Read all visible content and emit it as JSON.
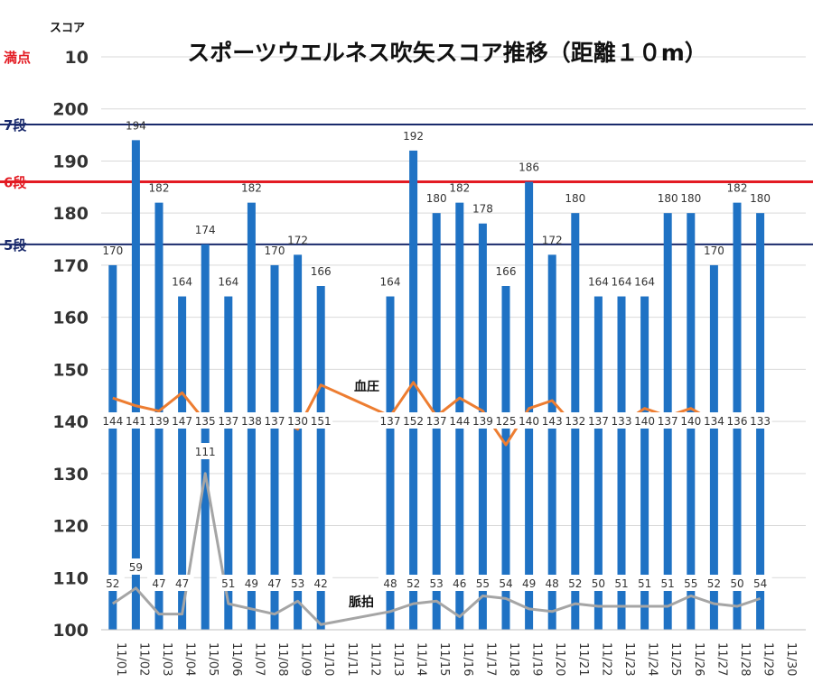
{
  "chart_data": {
    "type": "bar",
    "title": "スポーツウエルネス吹矢スコア推移（距離１０m）",
    "ylabel": "スコア",
    "ylim": [
      100,
      210
    ],
    "yticks": [
      "100",
      "110",
      "120",
      "130",
      "140",
      "150",
      "160",
      "170",
      "180",
      "190",
      "200",
      "10"
    ],
    "grid": true,
    "categories": [
      "11/01",
      "11/02",
      "11/03",
      "11/04",
      "11/05",
      "11/06",
      "11/07",
      "11/08",
      "11/09",
      "11/10",
      "11/11",
      "11/12",
      "11/13",
      "11/14",
      "11/15",
      "11/16",
      "11/17",
      "11/18",
      "11/19",
      "11/20",
      "11/21",
      "11/22",
      "11/23",
      "11/24",
      "11/25",
      "11/26",
      "11/27",
      "11/28",
      "11/29",
      "11/30"
    ],
    "series": [
      {
        "type": "bar",
        "color": "#1f72c4",
        "values": [
          170,
          194,
          182,
          164,
          174,
          164,
          182,
          170,
          172,
          166,
          null,
          null,
          164,
          192,
          180,
          182,
          178,
          166,
          186,
          172,
          180,
          164,
          164,
          164,
          180,
          180,
          170,
          182,
          180,
          null
        ]
      },
      {
        "name": "血圧",
        "type": "line",
        "color": "#ed7d31",
        "values": [
          144,
          141,
          139,
          147,
          135,
          137,
          138,
          137,
          130,
          151,
          null,
          null,
          137,
          152,
          137,
          144,
          139,
          125,
          140,
          143,
          132,
          137,
          133,
          140,
          137,
          140,
          134,
          136,
          133,
          null
        ],
        "plotted": [
          144.5,
          143,
          142,
          145.5,
          140,
          141,
          141.5,
          141,
          138.5,
          147,
          null,
          null,
          141,
          147.5,
          141,
          144.5,
          142,
          135.5,
          142.5,
          144,
          139,
          141,
          139.5,
          142.5,
          141,
          142.5,
          140,
          141,
          139.5,
          null
        ]
      },
      {
        "name": "脈拍",
        "type": "line",
        "color": "#a5a5a5",
        "values": [
          52,
          59,
          47,
          47,
          111,
          51,
          49,
          47,
          53,
          42,
          null,
          null,
          48,
          52,
          53,
          46,
          55,
          54,
          49,
          48,
          52,
          50,
          51,
          51,
          51,
          55,
          52,
          50,
          54,
          null
        ],
        "plotted": [
          105,
          108,
          103,
          103,
          130,
          105,
          104,
          103,
          105.5,
          101,
          null,
          null,
          103.5,
          105,
          105.5,
          102.5,
          106.5,
          106,
          104,
          103.5,
          105,
          104.5,
          104.5,
          104.5,
          104.5,
          106.5,
          105,
          104.5,
          106,
          null
        ]
      }
    ],
    "reference_lines": [
      {
        "label": "7段",
        "value": 197,
        "color": "#1a2a6c"
      },
      {
        "label": "6段",
        "value": 186,
        "color": "#e31b23"
      },
      {
        "label": "5段",
        "value": 174,
        "color": "#1a2a6c"
      },
      {
        "label": "満点",
        "value": 210,
        "color": "#e31b23"
      }
    ]
  }
}
